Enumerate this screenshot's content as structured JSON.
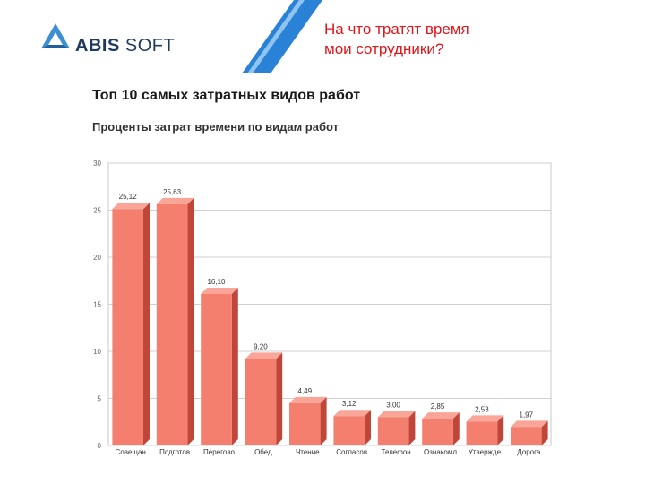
{
  "header": {
    "logo_text_bold": "ABIS",
    "logo_text_rest": " SOFT",
    "title_line1": "На что тратят время",
    "title_line2": "мои сотрудники?"
  },
  "colors": {
    "accent": "#e3141a",
    "bar_front": "#f47f6e",
    "bar_side": "#c0463a",
    "bar_top": "#f9a597",
    "logo": "#3d8fd1",
    "stripe": "#2a82d6"
  },
  "icons": {
    "logo": "abis-triangle-icon"
  },
  "chart_data": {
    "type": "bar",
    "title": "Топ 10 самых затратных видов работ",
    "subtitle": "Проценты затрат времени по видам работ",
    "categories": [
      "Совещан",
      "Подготов",
      "Перегово",
      "Обед",
      "Чтение",
      "Согласов",
      "Телефон",
      "Ознакомл",
      "Утвержде",
      "Дорога"
    ],
    "values": [
      25.12,
      25.63,
      16.1,
      9.2,
      4.49,
      3.12,
      3.0,
      2.85,
      2.53,
      1.97
    ],
    "labels": [
      "25,12",
      "25,63",
      "16,10",
      "9,20",
      "4,49",
      "3,12",
      "3,00",
      "2,85",
      "2,53",
      "1,97"
    ],
    "y_ticks": [
      0,
      5,
      10,
      15,
      20,
      25,
      30
    ],
    "ylim": [
      0,
      30
    ],
    "grid": true,
    "legend": "none"
  }
}
